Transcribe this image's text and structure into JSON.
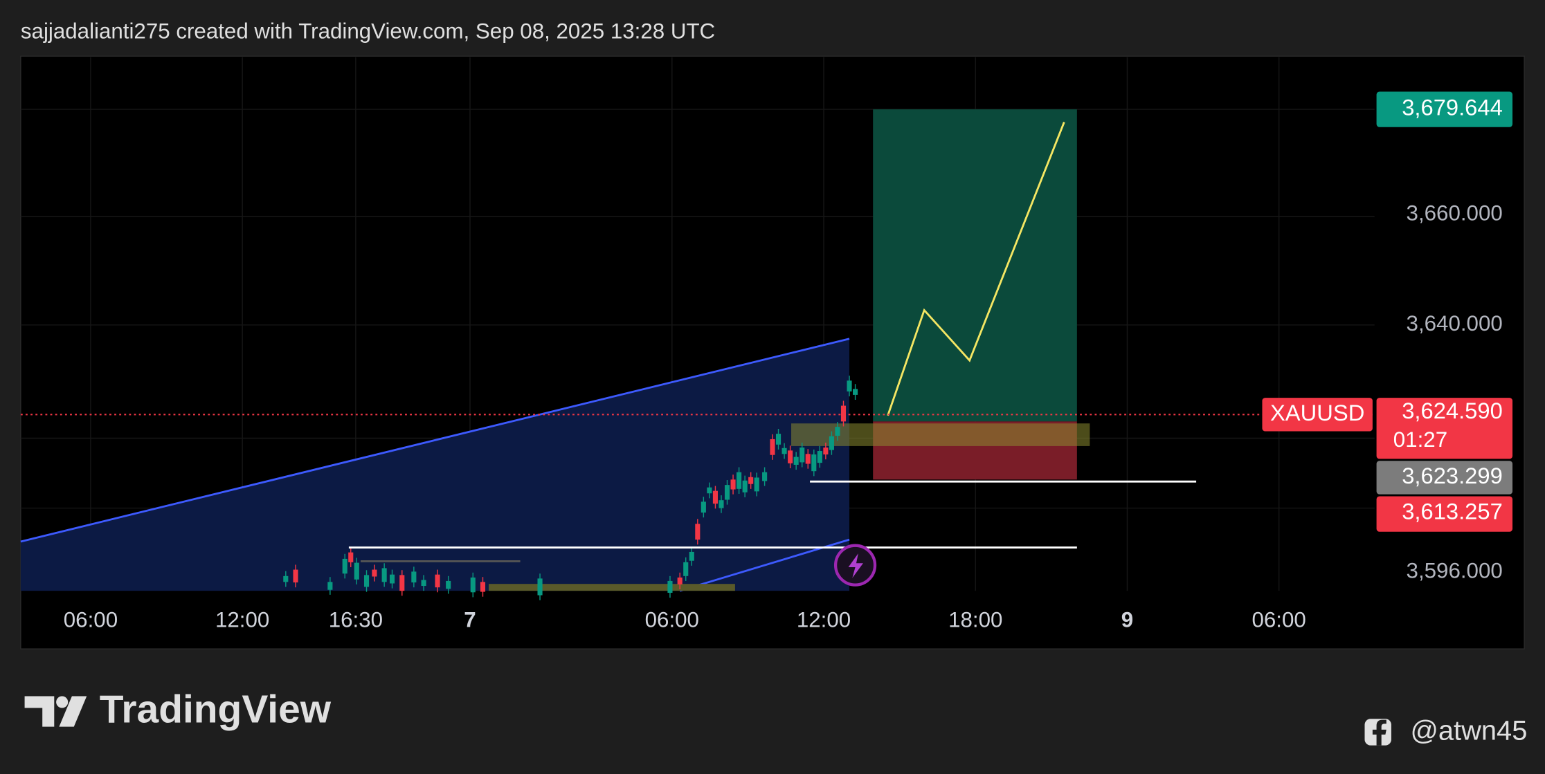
{
  "header": {
    "text": "sajjadalianti275 created with TradingView.com, Sep 08, 2025 13:28 UTC"
  },
  "price_axis": {
    "target": "3,679.644",
    "ticks": [
      "3,660.000",
      "3,640.000",
      "3,596.000"
    ],
    "current": {
      "symbol": "XAUUSD",
      "price": "3,624.590",
      "countdown": "01:27"
    },
    "level_1": "3,623.299",
    "level_2": "3,613.257"
  },
  "time_axis": {
    "labels": [
      "06:00",
      "12:00",
      "16:30",
      "7",
      "06:00",
      "12:00",
      "18:00",
      "9",
      "06:00"
    ]
  },
  "footer": {
    "logo": "TradingView",
    "handle": "@atwn45"
  }
}
